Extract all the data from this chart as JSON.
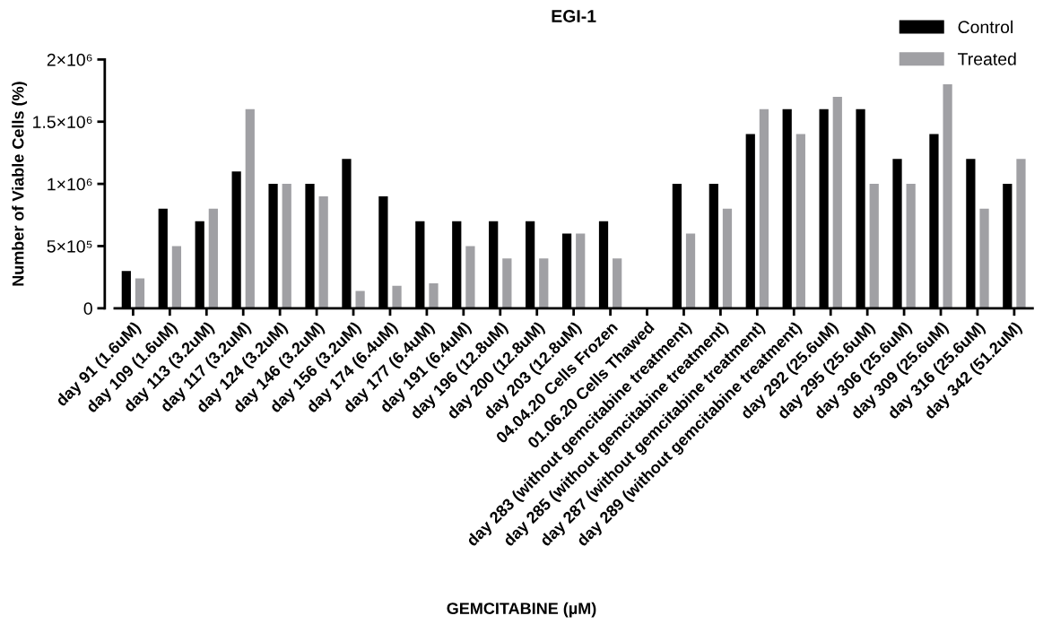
{
  "chart_data": {
    "type": "bar",
    "title": "EGI-1",
    "xlabel": "GEMCITABINE (µM)",
    "ylabel": "Number of Viable Cells (%)",
    "categories": [
      "day 91 (1.6uM)",
      "day 109 (1.6uM)",
      "day 113 (3.2uM)",
      "day 117 (3.2uM)",
      "day 124 (3.2uM)",
      "day 146 (3.2uM)",
      "day 156 (3.2uM)",
      "day 174 (6.4uM)",
      "day 177 (6.4uM)",
      "day 191 (6.4uM)",
      "day 196 (12.8uM)",
      "day 200 (12.8uM)",
      "day 203 (12.8uM)",
      "04.04.20 Cells Frozen",
      "01.06.20 Cells Thawed",
      "day 283 (without gemcitabine treatment)",
      "day 285 (without gemcitabine treatment)",
      "day 287 (without gemcitabine treatment)",
      "day 289 (without gemcitabine treatment)",
      "day 292 (25.6uM)",
      "day 295 (25.6uM)",
      "day 306 (25.6uM)",
      "day 309 (25.6uM)",
      "day 316 (25.6uM)",
      "day 342 (51.2uM)"
    ],
    "series": [
      {
        "name": "Control",
        "color": "#000000",
        "values": [
          300000,
          800000,
          700000,
          1100000,
          1000000,
          1000000,
          1200000,
          900000,
          700000,
          700000,
          700000,
          700000,
          600000,
          700000,
          null,
          1000000,
          1000000,
          1400000,
          1600000,
          1600000,
          1600000,
          1200000,
          1400000,
          1200000,
          1000000
        ]
      },
      {
        "name": "Treated",
        "color": "#a0a0a4",
        "values": [
          240000,
          500000,
          800000,
          1600000,
          1000000,
          900000,
          140000,
          180000,
          200000,
          500000,
          400000,
          400000,
          600000,
          400000,
          null,
          600000,
          800000,
          1600000,
          1400000,
          1700000,
          1000000,
          1000000,
          1800000,
          800000,
          1200000
        ]
      }
    ],
    "ylim": [
      0,
      2000000
    ],
    "yticks": [
      {
        "value": 0,
        "label": "0"
      },
      {
        "value": 500000,
        "label": "5×10⁵"
      },
      {
        "value": 1000000,
        "label": "1×10⁶"
      },
      {
        "value": 1500000,
        "label": "1.5×10⁶"
      },
      {
        "value": 2000000,
        "label": "2×10⁶"
      }
    ],
    "grid": false,
    "legend": "top right"
  }
}
